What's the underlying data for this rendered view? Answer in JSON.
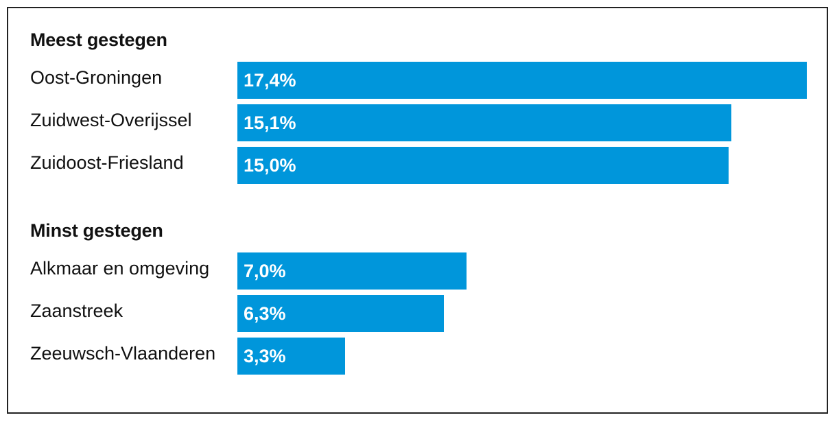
{
  "chart_data": [
    {
      "type": "bar",
      "orientation": "horizontal",
      "title": "Meest gestegen",
      "categories": [
        "Oost-Groningen",
        "Zuidwest-Overijssel",
        "Zuidoost-Friesland"
      ],
      "values": [
        17.4,
        15.1,
        15.0
      ],
      "value_labels": [
        "17,4%",
        "15,1%",
        "15,0%"
      ],
      "unit": "%",
      "xlim": [
        0,
        17.4
      ],
      "color": "#0096db"
    },
    {
      "type": "bar",
      "orientation": "horizontal",
      "title": "Minst gestegen",
      "categories": [
        "Alkmaar en omgeving",
        "Zaanstreek",
        "Zeeuwsch-Vlaanderen"
      ],
      "values": [
        7.0,
        6.3,
        3.3
      ],
      "value_labels": [
        "7,0%",
        "6,3%",
        "3,3%"
      ],
      "unit": "%",
      "xlim": [
        0,
        17.4
      ],
      "color": "#0096db"
    }
  ]
}
